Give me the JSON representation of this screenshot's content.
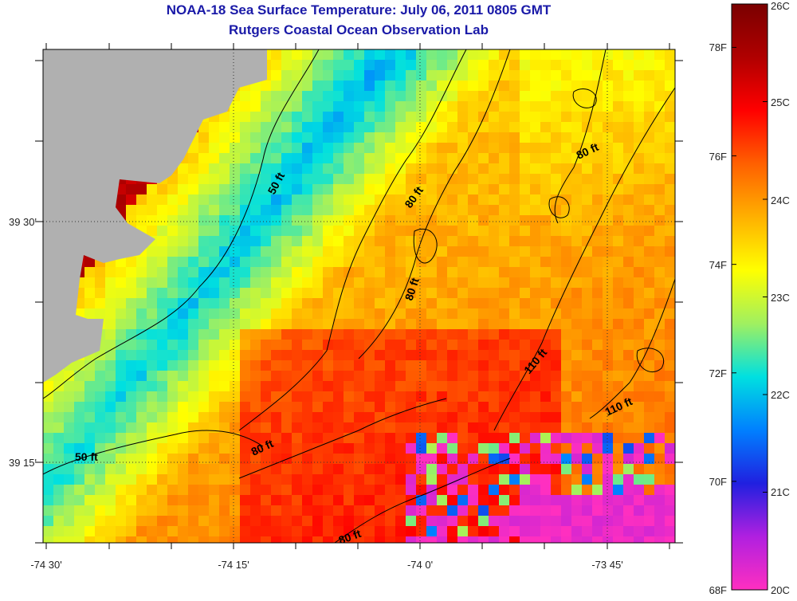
{
  "header": {
    "title_line1": "NOAA-18 Sea Surface Temperature:  July 06, 2011 0805 GMT",
    "title_line2": "Rutgers Coastal Ocean Observation Lab"
  },
  "map": {
    "x_ticks": [
      "-74 30'",
      "-74 15'",
      "-74 0'",
      "-73 45'"
    ],
    "y_ticks": [
      "39 30'",
      "39 15'"
    ],
    "land_color": "#b0b0b0",
    "contour_labels": [
      "50 ft",
      "80 ft",
      "80 ft",
      "80 ft",
      "80 ft",
      "80 ft",
      "110 ft",
      "110 ft",
      "50 ft"
    ]
  },
  "colorbar": {
    "celsius_labels": [
      "26C",
      "25C",
      "24C",
      "23C",
      "22C",
      "21C",
      "20C"
    ],
    "fahrenheit_labels": [
      "78F",
      "76F",
      "74F",
      "72F",
      "70F",
      "68F"
    ],
    "range_c": [
      20,
      26
    ],
    "stops": [
      "#ff2fc0",
      "#b020e0",
      "#2020e0",
      "#0080ff",
      "#00e0e0",
      "#a0f060",
      "#ffff00",
      "#ffb000",
      "#ff6000",
      "#ff0000",
      "#b00000",
      "#7a0000"
    ]
  }
}
